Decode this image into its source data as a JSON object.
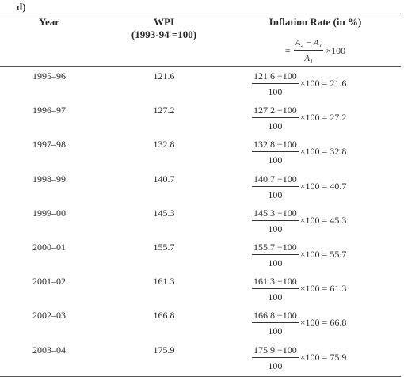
{
  "part_label": "d)",
  "headers": {
    "year": "Year",
    "wpi_line1": "WPI",
    "wpi_line2": "(1993-94 =100)",
    "rate": "Inflation Rate (in %)"
  },
  "formula": {
    "eq": "=",
    "numerator": "A₂ − A₁",
    "denominator": "A₁",
    "times": "×100"
  },
  "rows": [
    {
      "year": "1995–96",
      "wpi": "121.6",
      "numerator": "121.6 −100",
      "denominator": "100",
      "result": "×100 = 21.6"
    },
    {
      "year": "1996–97",
      "wpi": "127.2",
      "numerator": "127.2 −100",
      "denominator": "100",
      "result": "×100 = 27.2"
    },
    {
      "year": "1997–98",
      "wpi": "132.8",
      "numerator": "132.8 −100",
      "denominator": "100",
      "result": "×100 = 32.8"
    },
    {
      "year": "1998–99",
      "wpi": "140.7",
      "numerator": "140.7 −100",
      "denominator": "100",
      "result": "×100 = 40.7"
    },
    {
      "year": "1999–00",
      "wpi": "145.3",
      "numerator": "145.3 −100",
      "denominator": "100",
      "result": "×100 = 45.3"
    },
    {
      "year": "2000–01",
      "wpi": "155.7",
      "numerator": "155.7 −100",
      "denominator": "100",
      "result": "×100 = 55.7"
    },
    {
      "year": "2001–02",
      "wpi": "161.3",
      "numerator": "161.3 −100",
      "denominator": "100",
      "result": "×100 = 61.3"
    },
    {
      "year": "2002–03",
      "wpi": "166.8",
      "numerator": "166.8 −100",
      "denominator": "100",
      "result": "×100 = 66.8"
    },
    {
      "year": "2003–04",
      "wpi": "175.9",
      "numerator": "175.9 −100",
      "denominator": "100",
      "result": "×100 = 75.9"
    }
  ]
}
